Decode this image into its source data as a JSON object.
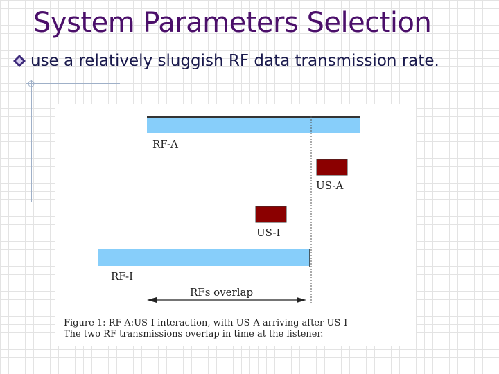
{
  "slide": {
    "title": "System Parameters Selection",
    "bullet": "use a relatively sluggish RF data transmission rate."
  },
  "diagram": {
    "labels": {
      "rf_a": "RF-A",
      "us_a": "US-A",
      "us_i": "US-I",
      "rf_i": "RF-I",
      "overlap": "RFs overlap"
    },
    "caption_line1": "Figure 1: RF-A:US-I interaction, with US-A arriving after US-I",
    "caption_line2": "The two RF transmissions overlap in time at the listener.",
    "colors": {
      "rf_bar": "#87cefa",
      "us_block": "#8b0000"
    }
  }
}
